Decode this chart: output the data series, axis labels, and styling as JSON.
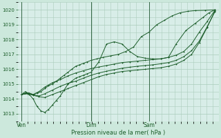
{
  "title": "",
  "xlabel": "Pression niveau de la mer( hPa )",
  "ylim": [
    1012.5,
    1020.5
  ],
  "yticks": [
    1013,
    1014,
    1015,
    1016,
    1017,
    1018,
    1019,
    1020
  ],
  "bg_color": "#cce8dc",
  "plot_bg": "#d8ede8",
  "grid_color": "#aaccbb",
  "line_color": "#1a5c28",
  "xtick_labels": [
    "Ven",
    "Dim",
    "Sam"
  ],
  "xtick_positions": [
    0.0,
    0.36,
    0.66
  ],
  "series": [
    {
      "x": [
        0.0,
        0.02,
        0.04,
        0.06,
        0.08,
        0.1,
        0.12,
        0.14,
        0.16,
        0.18,
        0.2,
        0.22,
        0.24,
        0.26,
        0.28,
        0.3,
        0.32,
        0.34,
        0.36,
        0.39,
        0.42,
        0.46,
        0.5,
        0.54,
        0.58,
        0.62,
        0.66,
        0.7,
        0.74,
        0.78,
        0.82,
        0.86,
        0.9,
        0.95,
        1.0
      ],
      "y": [
        1014.3,
        1014.4,
        1014.4,
        1014.3,
        1014.4,
        1014.5,
        1014.7,
        1014.9,
        1015.0,
        1015.2,
        1015.4,
        1015.6,
        1015.8,
        1016.0,
        1016.2,
        1016.3,
        1016.4,
        1016.5,
        1016.6,
        1016.7,
        1016.8,
        1016.9,
        1017.0,
        1017.2,
        1017.5,
        1018.2,
        1018.5,
        1019.0,
        1019.3,
        1019.6,
        1019.8,
        1019.9,
        1019.95,
        1019.97,
        1020.0
      ]
    },
    {
      "x": [
        0.0,
        0.02,
        0.04,
        0.06,
        0.08,
        0.1,
        0.12,
        0.14,
        0.16,
        0.18,
        0.2,
        0.22,
        0.24,
        0.26,
        0.28,
        0.3,
        0.32,
        0.34,
        0.36,
        0.4,
        0.44,
        0.48,
        0.52,
        0.56,
        0.6,
        0.64,
        0.68,
        0.72,
        0.76,
        0.8,
        0.85,
        0.9,
        0.94,
        0.97,
        1.0
      ],
      "y": [
        1014.3,
        1014.5,
        1014.3,
        1014.0,
        1013.5,
        1013.2,
        1013.1,
        1013.3,
        1013.6,
        1013.9,
        1014.2,
        1014.6,
        1015.0,
        1015.2,
        1015.4,
        1015.5,
        1015.6,
        1015.7,
        1015.8,
        1016.5,
        1017.7,
        1017.85,
        1017.7,
        1017.2,
        1016.85,
        1016.75,
        1016.7,
        1016.7,
        1016.8,
        1017.7,
        1018.6,
        1019.1,
        1019.5,
        1019.8,
        1020.0
      ]
    },
    {
      "x": [
        0.0,
        0.03,
        0.06,
        0.09,
        0.12,
        0.16,
        0.2,
        0.24,
        0.28,
        0.32,
        0.36,
        0.4,
        0.44,
        0.48,
        0.52,
        0.56,
        0.6,
        0.64,
        0.68,
        0.72,
        0.76,
        0.8,
        0.84,
        0.88,
        0.92,
        0.96,
        1.0
      ],
      "y": [
        1014.3,
        1014.4,
        1014.3,
        1014.5,
        1014.8,
        1015.1,
        1015.3,
        1015.55,
        1015.75,
        1015.9,
        1016.05,
        1016.15,
        1016.25,
        1016.35,
        1016.45,
        1016.5,
        1016.55,
        1016.6,
        1016.65,
        1016.7,
        1016.8,
        1016.95,
        1017.2,
        1017.7,
        1018.5,
        1019.2,
        1019.95
      ]
    },
    {
      "x": [
        0.0,
        0.03,
        0.06,
        0.09,
        0.12,
        0.16,
        0.2,
        0.24,
        0.28,
        0.32,
        0.36,
        0.4,
        0.44,
        0.48,
        0.52,
        0.56,
        0.6,
        0.64,
        0.68,
        0.72,
        0.76,
        0.8,
        0.84,
        0.88,
        0.92,
        0.96,
        1.0
      ],
      "y": [
        1014.3,
        1014.35,
        1014.25,
        1014.15,
        1014.1,
        1014.3,
        1014.5,
        1014.7,
        1014.9,
        1015.1,
        1015.3,
        1015.5,
        1015.65,
        1015.75,
        1015.85,
        1015.9,
        1015.95,
        1016.0,
        1016.05,
        1016.1,
        1016.2,
        1016.35,
        1016.6,
        1017.0,
        1017.8,
        1018.8,
        1019.9
      ]
    },
    {
      "x": [
        0.0,
        0.03,
        0.06,
        0.09,
        0.12,
        0.16,
        0.2,
        0.24,
        0.28,
        0.32,
        0.36,
        0.4,
        0.44,
        0.48,
        0.52,
        0.56,
        0.6,
        0.64,
        0.68,
        0.72,
        0.76,
        0.8,
        0.84,
        0.88,
        0.92,
        0.96,
        1.0
      ],
      "y": [
        1014.3,
        1014.4,
        1014.3,
        1014.2,
        1014.35,
        1014.6,
        1014.85,
        1015.05,
        1015.2,
        1015.4,
        1015.6,
        1015.75,
        1015.87,
        1015.97,
        1016.07,
        1016.14,
        1016.2,
        1016.25,
        1016.3,
        1016.37,
        1016.45,
        1016.6,
        1016.85,
        1017.25,
        1017.9,
        1018.85,
        1019.85
      ]
    }
  ]
}
